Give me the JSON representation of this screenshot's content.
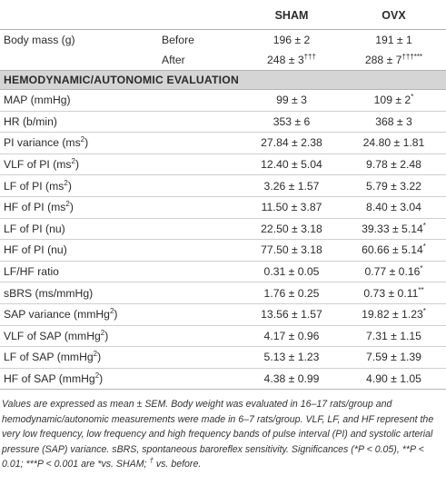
{
  "header": {
    "col_label": "",
    "col_group": "",
    "col_sham": "SHAM",
    "col_ovx": "OVX"
  },
  "body_mass": {
    "label": "Body mass (g)",
    "before_label": "Before",
    "before_sham": "196 ± 2",
    "before_ovx": "191 ± 1",
    "after_label": "After",
    "after_sham": "248 ± 3",
    "after_sham_sup": "†††",
    "after_ovx": "288 ± 7",
    "after_ovx_sup": "†††***"
  },
  "section_title": "HEMODYNAMIC/AUTONOMIC EVALUATION",
  "rows": [
    {
      "label": "MAP (mmHg)",
      "sup": "",
      "unit_after": "",
      "sham": "99 ± 3",
      "ovx": "109 ± 2",
      "ovx_sup": "*"
    },
    {
      "label": "HR (b/min)",
      "sup": "",
      "unit_after": "",
      "sham": "353 ± 6",
      "ovx": "368 ± 3",
      "ovx_sup": ""
    },
    {
      "label": "PI variance (ms",
      "sup": "2",
      "unit_after": ")",
      "sham": "27.84 ± 2.38",
      "ovx": "24.80 ± 1.81",
      "ovx_sup": ""
    },
    {
      "label": "VLF of PI (ms",
      "sup": "2",
      "unit_after": ")",
      "sham": "12.40 ± 5.04",
      "ovx": "9.78 ± 2.48",
      "ovx_sup": ""
    },
    {
      "label": "LF of PI (ms",
      "sup": "2",
      "unit_after": ")",
      "sham": "3.26 ± 1.57",
      "ovx": "5.79 ± 3.22",
      "ovx_sup": ""
    },
    {
      "label": "HF of PI (ms",
      "sup": "2",
      "unit_after": ")",
      "sham": "11.50 ± 3.87",
      "ovx": "8.40 ± 3.04",
      "ovx_sup": ""
    },
    {
      "label": "LF of PI (nu)",
      "sup": "",
      "unit_after": "",
      "sham": "22.50 ± 3.18",
      "ovx": "39.33 ± 5.14",
      "ovx_sup": "*"
    },
    {
      "label": "HF of PI (nu)",
      "sup": "",
      "unit_after": "",
      "sham": "77.50 ± 3.18",
      "ovx": "60.66 ± 5.14",
      "ovx_sup": "*"
    },
    {
      "label": "LF/HF ratio",
      "sup": "",
      "unit_after": "",
      "sham": "0.31 ± 0.05",
      "ovx": "0.77 ± 0.16",
      "ovx_sup": "*"
    },
    {
      "label": "sBRS (ms/mmHg)",
      "sup": "",
      "unit_after": "",
      "sham": "1.76 ± 0.25",
      "ovx": "0.73 ± 0.11",
      "ovx_sup": "**"
    },
    {
      "label": "SAP variance (mmHg",
      "sup": "2",
      "unit_after": ")",
      "sham": "13.56 ± 1.57",
      "ovx": "19.82 ± 1.23",
      "ovx_sup": "*"
    },
    {
      "label": "VLF of SAP (mmHg",
      "sup": "2",
      "unit_after": ")",
      "sham": "4.17 ± 0.96",
      "ovx": "7.31 ± 1.15",
      "ovx_sup": ""
    },
    {
      "label": "LF of SAP (mmHg",
      "sup": "2",
      "unit_after": ")",
      "sham": "5.13 ± 1.23",
      "ovx": "7.59 ± 1.39",
      "ovx_sup": ""
    },
    {
      "label": "HF of SAP (mmHg",
      "sup": "2",
      "unit_after": ")",
      "sham": "4.38 ± 0.99",
      "ovx": "4.90 ± 1.05",
      "ovx_sup": ""
    }
  ],
  "footnote": {
    "main": "Values are expressed as mean ± SEM. Body weight was evaluated in 16–17 rats/group and hemodynamic/autonomic measurements were made in 6–7 rats/group. VLF, LF, and HF represent the very low frequency, low frequency and high frequency bands of pulse interval (PI) and systolic arterial pressure (SAP) variance. sBRS, spontaneous baroreflex sensitivity. Significances (*P < 0.05), **P < 0.01; ***P < 0.001 are *vs. SHAM; ",
    "dagger": "†",
    "end": " vs. before."
  }
}
